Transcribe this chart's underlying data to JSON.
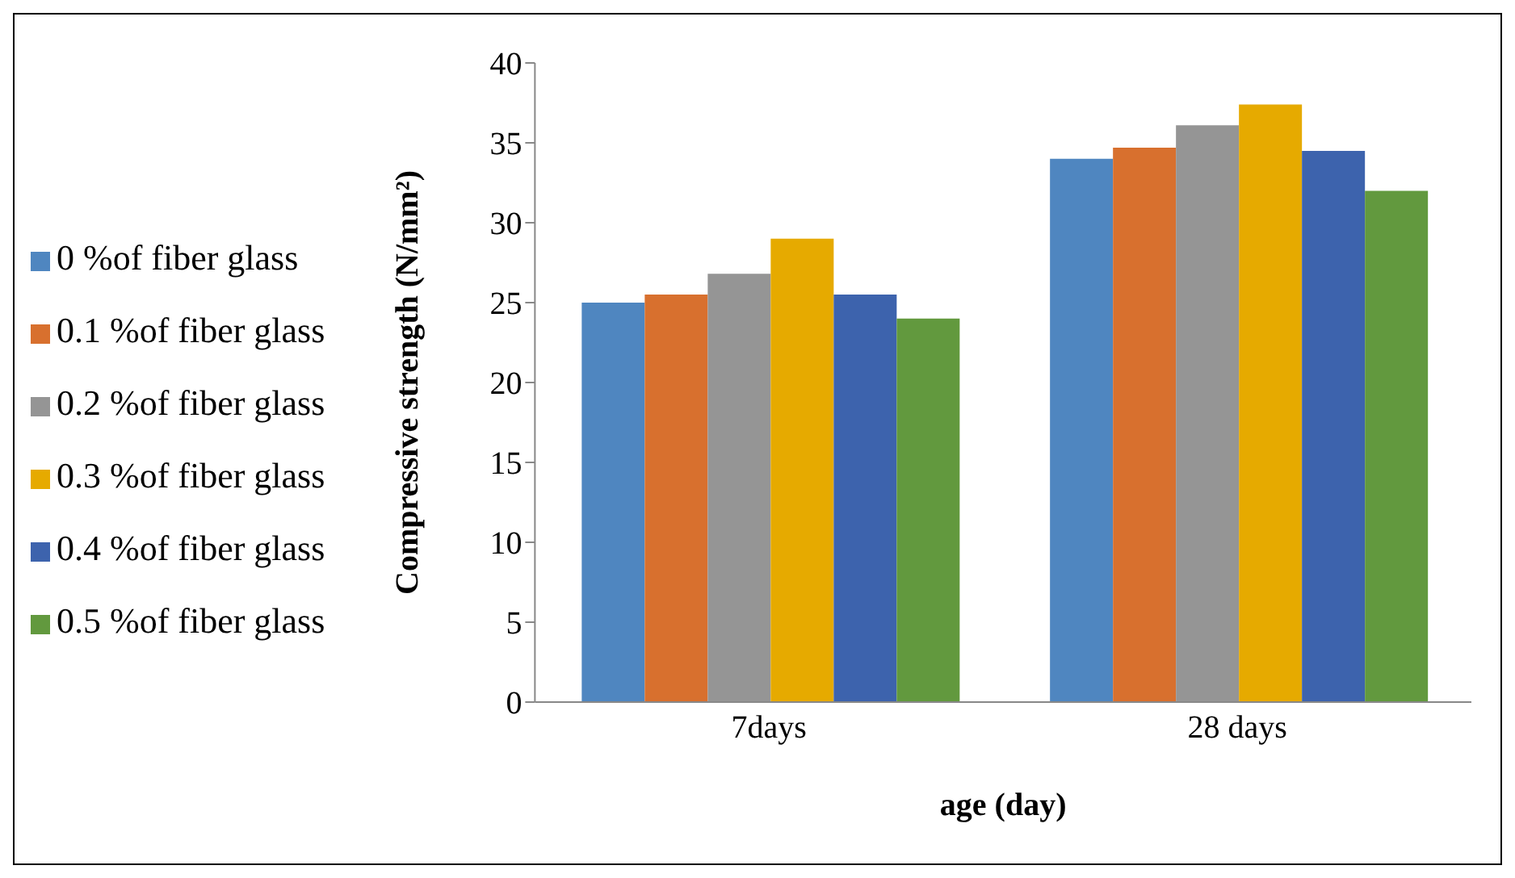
{
  "chart_data": {
    "type": "bar",
    "xlabel": "age (day)",
    "ylabel": "Compressive strength (N/mm²)",
    "categories": [
      "7days",
      "28 days"
    ],
    "series": [
      {
        "name": "0 %of fiber glass",
        "color": "#4f86c0",
        "values": [
          25,
          34
        ]
      },
      {
        "name": "0.1 %of fiber glass",
        "color": "#d8702e",
        "values": [
          25.5,
          34.7
        ]
      },
      {
        "name": "0.2 %of fiber glass",
        "color": "#959595",
        "values": [
          26.8,
          36.1
        ]
      },
      {
        "name": "0.3 %of fiber glass",
        "color": "#e6aa00",
        "values": [
          29,
          37.4
        ]
      },
      {
        "name": "0.4 %of fiber glass",
        "color": "#3d63ad",
        "values": [
          25.5,
          34.5
        ]
      },
      {
        "name": "0.5 %of fiber glass",
        "color": "#62993e",
        "values": [
          24,
          32
        ]
      }
    ],
    "ylim": [
      0,
      40
    ],
    "yticks": [
      0,
      5,
      10,
      15,
      20,
      25,
      30,
      35,
      40
    ],
    "grid": false,
    "legend": "left"
  }
}
